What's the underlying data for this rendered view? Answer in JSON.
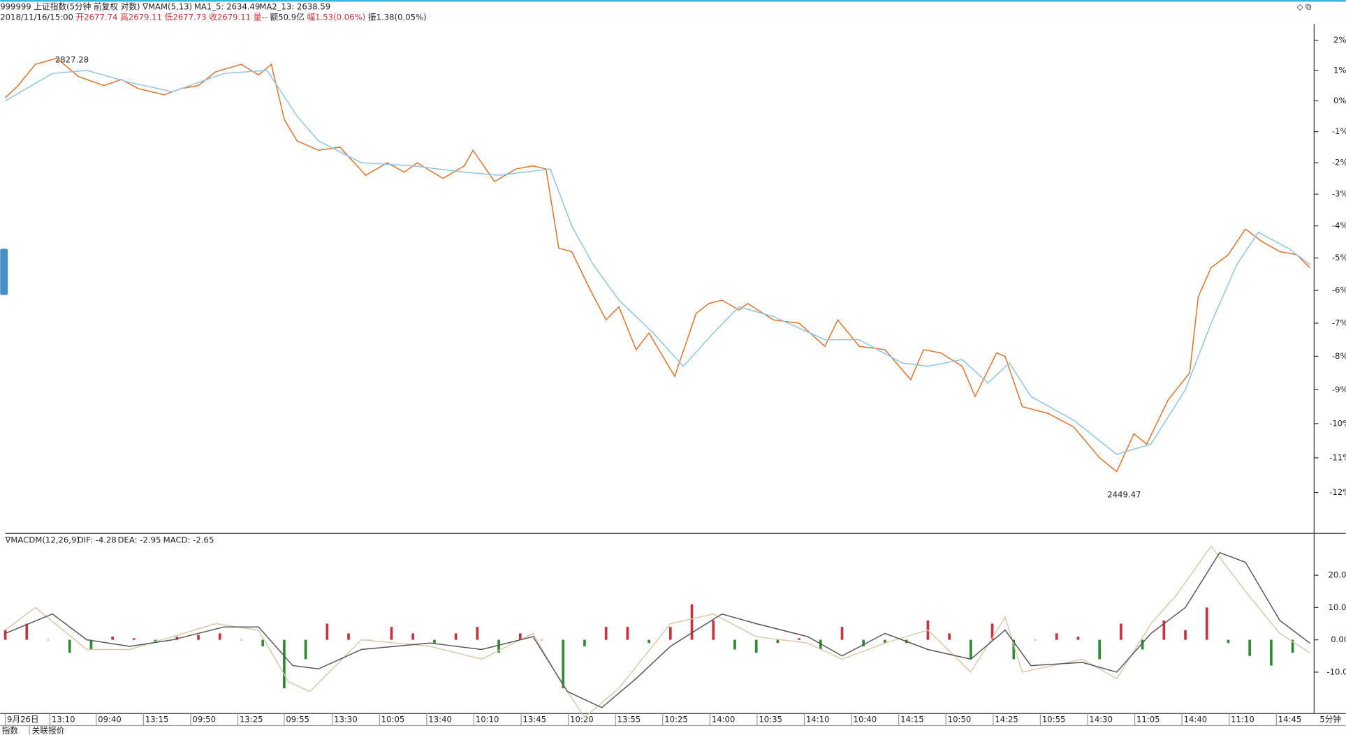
{
  "header": {
    "symbol": "999999 上证指数(5分钟 前复权 对数)",
    "indicator": "∇MAM(5,13)",
    "date": "2018/11/16/15:00",
    "open": "开2677.74",
    "high": "高2679.11",
    "low": "低2677.73",
    "close": "收2679.11",
    "volume": "量--",
    "amount": "额50.9亿",
    "change": "幅1.53(0.06%)",
    "amplitude": "振1.38(0.05%)",
    "period": "5分钟",
    "tabs": [
      "指数",
      "关联报价"
    ]
  },
  "chart_data": [
    {
      "type": "line",
      "log_scale": true,
      "grid": false,
      "xlim": [
        0,
        305
      ],
      "ylim": [
        -13.17,
        2.54
      ],
      "yticks": [
        {
          "value": 2,
          "label": "2%"
        },
        {
          "value": 1,
          "label": "1%"
        },
        {
          "value": 0,
          "label": "0%"
        },
        {
          "value": -1,
          "label": "-1%"
        },
        {
          "value": -2,
          "label": "-2%"
        },
        {
          "value": -3,
          "label": "-3%"
        },
        {
          "value": -4,
          "label": "-4%"
        },
        {
          "value": -5,
          "label": "-5%"
        },
        {
          "value": -6,
          "label": "-6%"
        },
        {
          "value": -7,
          "label": "-7%"
        },
        {
          "value": -8,
          "label": "-8%"
        },
        {
          "value": -9,
          "label": "-9%"
        },
        {
          "value": -10,
          "label": "-10%"
        },
        {
          "value": -11,
          "label": "-11%"
        },
        {
          "value": -12,
          "label": "-12%"
        }
      ],
      "annotations": [
        "2827.28",
        "2449.47"
      ],
      "series": [
        {
          "name": "MA1_5: 2634.49",
          "color": "#e0702a",
          "x": [
            0,
            3,
            7,
            12,
            17,
            23,
            27,
            31,
            37,
            41,
            45,
            49,
            55,
            59,
            62,
            65,
            68,
            73,
            78,
            84,
            89,
            93,
            96,
            102,
            107,
            109,
            114,
            119,
            123,
            126,
            129,
            132,
            136,
            140,
            143,
            147,
            150,
            156,
            161,
            164,
            167,
            171,
            173,
            179,
            185,
            191,
            194,
            199,
            205,
            211,
            214,
            218,
            223,
            226,
            231,
            233,
            237,
            243,
            249,
            255,
            259,
            263,
            266,
            271,
            276,
            278,
            281,
            285,
            289,
            293,
            297,
            301,
            304
          ],
          "values": [
            0.1,
            0.5,
            1.2,
            1.4,
            0.8,
            0.5,
            0.7,
            0.4,
            0.2,
            0.4,
            0.5,
            0.95,
            1.2,
            0.85,
            1.2,
            -0.6,
            -1.3,
            -1.6,
            -1.5,
            -2.4,
            -2.0,
            -2.3,
            -2.0,
            -2.5,
            -2.1,
            -1.6,
            -2.6,
            -2.2,
            -2.1,
            -2.2,
            -4.7,
            -4.8,
            -5.9,
            -6.9,
            -6.5,
            -7.8,
            -7.3,
            -8.6,
            -6.7,
            -6.4,
            -6.3,
            -6.6,
            -6.4,
            -6.9,
            -7.0,
            -7.7,
            -6.9,
            -7.7,
            -7.8,
            -8.7,
            -7.8,
            -7.9,
            -8.3,
            -9.2,
            -7.9,
            -8.0,
            -9.5,
            -9.7,
            -10.1,
            -11.0,
            -11.4,
            -10.3,
            -10.6,
            -9.3,
            -8.5,
            -6.2,
            -5.3,
            -4.9,
            -4.1,
            -4.5,
            -4.8,
            -4.9,
            -5.3
          ]
        },
        {
          "name": "MA2_13: 2638.59",
          "color": "#8cc4e6",
          "x": [
            0,
            11,
            19,
            29,
            39,
            51,
            61,
            68,
            73,
            83,
            95,
            107,
            115,
            127,
            132,
            137,
            143,
            151,
            158,
            165,
            171,
            179,
            191,
            199,
            209,
            215,
            223,
            229,
            234,
            239,
            249,
            259,
            267,
            275,
            281,
            287,
            292,
            299,
            304
          ],
          "values": [
            0.0,
            0.9,
            1.0,
            0.6,
            0.3,
            0.9,
            1.0,
            -0.5,
            -1.3,
            -2.0,
            -2.1,
            -2.3,
            -2.4,
            -2.2,
            -4.0,
            -5.2,
            -6.3,
            -7.3,
            -8.3,
            -7.3,
            -6.5,
            -6.8,
            -7.5,
            -7.5,
            -8.2,
            -8.3,
            -8.1,
            -8.8,
            -8.2,
            -9.2,
            -9.9,
            -10.9,
            -10.6,
            -9.0,
            -7.0,
            -5.2,
            -4.2,
            -4.7,
            -5.2
          ]
        }
      ]
    },
    {
      "type": "bar",
      "title": "∇MACDM(12,26,9)",
      "label": "MACD: -2.65",
      "up_color": "#c8323c",
      "down_color": "#2e8b2e",
      "xlim": [
        0,
        305
      ],
      "ylim": [
        -22.3,
        32.4
      ],
      "yticks": [
        {
          "value": 20,
          "label": "20.00"
        },
        {
          "value": 10,
          "label": "10.00"
        },
        {
          "value": 0,
          "label": "0.00"
        },
        {
          "value": -10,
          "label": "-10.00"
        }
      ],
      "xticks": [
        {
          "value": 0,
          "label": "9月26日"
        },
        {
          "value": 10.4,
          "label": "13:10"
        },
        {
          "value": 21.2,
          "label": "09:40"
        },
        {
          "value": 32.2,
          "label": "13:15"
        },
        {
          "value": 43.2,
          "label": "09:50"
        },
        {
          "value": 54.2,
          "label": "13:25"
        },
        {
          "value": 65,
          "label": "09:55"
        },
        {
          "value": 76.2,
          "label": "13:30"
        },
        {
          "value": 87.2,
          "label": "10:05"
        },
        {
          "value": 98.2,
          "label": "13:40"
        },
        {
          "value": 109.2,
          "label": "10:10"
        },
        {
          "value": 120.2,
          "label": "13:45"
        },
        {
          "value": 131.2,
          "label": "10:20"
        },
        {
          "value": 142.2,
          "label": "13:55"
        },
        {
          "value": 153.2,
          "label": "10:25"
        },
        {
          "value": 164.2,
          "label": "14:00"
        },
        {
          "value": 175.2,
          "label": "10:35"
        },
        {
          "value": 186.2,
          "label": "14:10"
        },
        {
          "value": 197.2,
          "label": "10:40"
        },
        {
          "value": 208.2,
          "label": "14:15"
        },
        {
          "value": 219.2,
          "label": "10:50"
        },
        {
          "value": 230.2,
          "label": "14:25"
        },
        {
          "value": 241.2,
          "label": "10:55"
        },
        {
          "value": 252.2,
          "label": "14:30"
        },
        {
          "value": 263.2,
          "label": "11:05"
        },
        {
          "value": 274.2,
          "label": "14:40"
        },
        {
          "value": 285.2,
          "label": "11:10"
        },
        {
          "value": 296.2,
          "label": "14:45"
        }
      ],
      "x": [
        0,
        5,
        10,
        15,
        20,
        25,
        30,
        35,
        40,
        45,
        50,
        55,
        60,
        65,
        70,
        75,
        80,
        85,
        90,
        95,
        100,
        105,
        110,
        115,
        120,
        125,
        130,
        135,
        140,
        145,
        150,
        155,
        160,
        165,
        170,
        175,
        180,
        185,
        190,
        195,
        200,
        205,
        210,
        215,
        220,
        225,
        230,
        235,
        240,
        245,
        250,
        255,
        260,
        265,
        270,
        275,
        280,
        285,
        290,
        295,
        300
      ],
      "values": [
        3,
        5,
        0,
        -4,
        -3,
        1,
        0.5,
        -0.5,
        1,
        1.5,
        2,
        0,
        -2,
        -15,
        -6,
        5,
        2,
        0,
        4,
        2,
        -1,
        2,
        4,
        -4,
        2,
        0,
        -15,
        -2,
        4,
        4,
        -1,
        4,
        11,
        6,
        -3,
        -4,
        -1,
        0.5,
        -3,
        4,
        -2,
        -1,
        -1,
        6,
        2,
        -6,
        5,
        -6,
        0,
        2,
        1,
        -6,
        5,
        -3,
        6,
        3,
        10,
        -1,
        -5,
        -8,
        -4
      ],
      "series": [
        {
          "name": "DIF: -4.28",
          "color": "#d8c8a8",
          "x": [
            0,
            7,
            19,
            29,
            49,
            59,
            66,
            71,
            83,
            99,
            111,
            123,
            129,
            135,
            143,
            155,
            165,
            175,
            187,
            195,
            205,
            215,
            225,
            233,
            237,
            251,
            259,
            267,
            273,
            281,
            289,
            297,
            304
          ],
          "values": [
            3,
            10,
            -3,
            -3,
            5,
            3,
            -13,
            -16,
            0,
            -2,
            -6,
            2,
            -12,
            -24,
            -15,
            5,
            8,
            1,
            -1,
            -6,
            -1,
            3,
            -10,
            7,
            -10,
            -6,
            -12,
            5,
            14,
            29,
            15,
            2,
            -4
          ]
        },
        {
          "name": "DEA: -2.95",
          "color": "#555555",
          "x": [
            0,
            11,
            19,
            29,
            39,
            51,
            59,
            67,
            73,
            83,
            99,
            111,
            123,
            131,
            139,
            147,
            155,
            167,
            175,
            187,
            195,
            205,
            215,
            225,
            233,
            239,
            251,
            259,
            267,
            275,
            283,
            289,
            297,
            304
          ],
          "values": [
            2,
            8,
            0,
            -2,
            0,
            4,
            4,
            -8,
            -9,
            -3,
            -1,
            -3,
            1,
            -16,
            -21,
            -12,
            -2,
            8,
            5,
            1,
            -5,
            2,
            -3,
            -6,
            3,
            -8,
            -7,
            -10,
            2,
            10,
            27,
            24,
            6,
            -1
          ]
        }
      ]
    }
  ]
}
